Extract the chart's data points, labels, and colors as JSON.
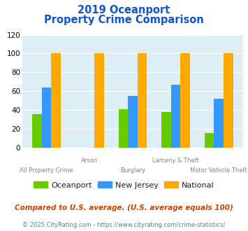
{
  "title_line1": "2019 Oceanport",
  "title_line2": "Property Crime Comparison",
  "categories": [
    "All Property Crime",
    "Arson",
    "Burglary",
    "Larceny & Theft",
    "Motor Vehicle Theft"
  ],
  "series": {
    "Oceanport": [
      36,
      0,
      41,
      38,
      16
    ],
    "New Jersey": [
      64,
      0,
      55,
      67,
      52
    ],
    "National": [
      100,
      100,
      100,
      100,
      100
    ]
  },
  "colors": {
    "Oceanport": "#66cc00",
    "New Jersey": "#3399ff",
    "National": "#ffaa00"
  },
  "ylim": [
    0,
    120
  ],
  "yticks": [
    0,
    20,
    40,
    60,
    80,
    100,
    120
  ],
  "bar_width": 0.22,
  "plot_bg": "#ddeef5",
  "title_color": "#1155cc",
  "xlabel_color": "#997799",
  "legend_fontsize": 8,
  "title_fontsize": 10.5,
  "tick_fontsize": 7.5,
  "footnote1": "Compared to U.S. average. (U.S. average equals 100)",
  "footnote2": "© 2025 CityRating.com - https://www.cityrating.com/crime-statistics/",
  "footnote1_color": "#cc4400",
  "footnote2_color": "#4488aa",
  "footnote1_fontsize": 7.5,
  "footnote2_fontsize": 6.0
}
